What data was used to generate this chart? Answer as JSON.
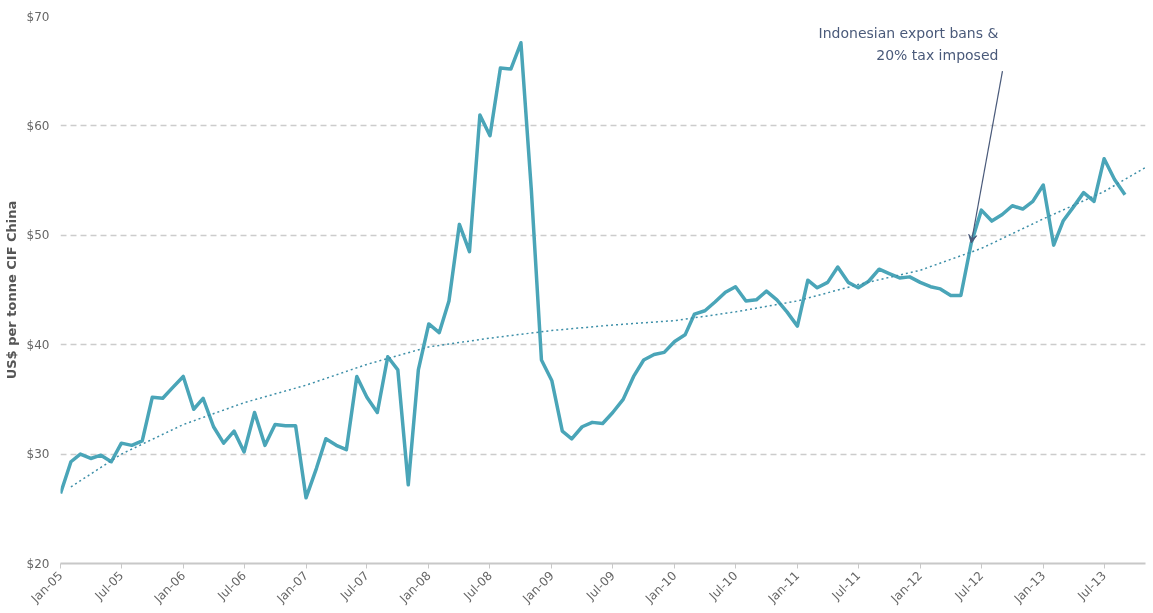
{
  "chart_data": {
    "type": "line",
    "ylabel": "US$ per tonne CIF China",
    "x": [
      "2005-01",
      "2005-02",
      "2005-03",
      "2005-04",
      "2005-05",
      "2005-06",
      "2005-07",
      "2005-08",
      "2005-09",
      "2005-10",
      "2005-11",
      "2005-12",
      "2006-01",
      "2006-02",
      "2006-03",
      "2006-04",
      "2006-05",
      "2006-06",
      "2006-07",
      "2006-08",
      "2006-09",
      "2006-10",
      "2006-11",
      "2006-12",
      "2007-01",
      "2007-02",
      "2007-03",
      "2007-04",
      "2007-05",
      "2007-06",
      "2007-07",
      "2007-08",
      "2007-09",
      "2007-10",
      "2007-11",
      "2007-12",
      "2008-01",
      "2008-02",
      "2008-03",
      "2008-04",
      "2008-05",
      "2008-06",
      "2008-07",
      "2008-08",
      "2008-09",
      "2008-10",
      "2008-11",
      "2008-12",
      "2009-01",
      "2009-02",
      "2009-03",
      "2009-04",
      "2009-05",
      "2009-06",
      "2009-07",
      "2009-08",
      "2009-09",
      "2009-10",
      "2009-11",
      "2009-12",
      "2010-01",
      "2010-02",
      "2010-03",
      "2010-04",
      "2010-05",
      "2010-06",
      "2010-07",
      "2010-08",
      "2010-09",
      "2010-10",
      "2010-11",
      "2010-12",
      "2011-01",
      "2011-02",
      "2011-03",
      "2011-04",
      "2011-05",
      "2011-06",
      "2011-07",
      "2011-08",
      "2011-09",
      "2011-10",
      "2011-11",
      "2011-12",
      "2012-01",
      "2012-02",
      "2012-03",
      "2012-04",
      "2012-05",
      "2012-06",
      "2012-07",
      "2012-08",
      "2012-09",
      "2012-10",
      "2012-11",
      "2012-12",
      "2013-01",
      "2013-02",
      "2013-03",
      "2013-04",
      "2013-05",
      "2013-06",
      "2013-07",
      "2013-08",
      "2013-09"
    ],
    "series": [
      {
        "color": "#4aa5b8",
        "line_style": "solid",
        "values": [
          26.4,
          29.3,
          30.0,
          29.6,
          29.9,
          29.3,
          31.0,
          30.8,
          31.2,
          35.2,
          35.1,
          36.1,
          37.1,
          34.1,
          35.1,
          32.5,
          31.0,
          32.1,
          30.2,
          33.8,
          30.8,
          32.7,
          32.6,
          32.6,
          26.0,
          28.7,
          31.4,
          30.8,
          30.4,
          37.1,
          35.2,
          33.8,
          38.9,
          37.7,
          27.2,
          37.7,
          41.9,
          41.1,
          44.0,
          51.0,
          48.5,
          61.0,
          59.1,
          65.3,
          65.2,
          67.6,
          54.1,
          38.6,
          36.7,
          32.1,
          31.4,
          32.5,
          32.9,
          32.8,
          33.8,
          35.0,
          37.1,
          38.6,
          39.1,
          39.3,
          40.3,
          40.9,
          42.8,
          43.1,
          43.9,
          44.8,
          45.3,
          44.0,
          44.1,
          44.9,
          44.1,
          43.0,
          41.7,
          45.9,
          45.2,
          45.7,
          47.1,
          45.7,
          45.2,
          45.8,
          46.9,
          46.5,
          46.1,
          46.2,
          45.7,
          45.3,
          45.1,
          44.5,
          44.5,
          49.3,
          52.3,
          51.3,
          51.9,
          52.7,
          52.4,
          53.1,
          54.6,
          49.1,
          51.3,
          52.6,
          53.9,
          53.1,
          57.0,
          55.1,
          53.7
        ]
      },
      {
        "type": "line",
        "color": "#3d8fa8",
        "line_style": "dotted",
        "x": [
          "2005-02",
          "2005-07",
          "2006-01",
          "2006-07",
          "2007-01",
          "2007-07",
          "2008-01",
          "2008-07",
          "2009-01",
          "2009-07",
          "2010-01",
          "2010-07",
          "2011-01",
          "2011-07",
          "2012-01",
          "2012-07",
          "2013-01",
          "2013-07",
          "2013-11"
        ],
        "values": [
          27.0,
          30.0,
          32.7,
          34.7,
          36.3,
          38.2,
          39.8,
          40.6,
          41.3,
          41.8,
          42.2,
          43.0,
          44.0,
          45.5,
          46.8,
          48.8,
          51.5,
          54.0,
          56.2
        ]
      }
    ],
    "xlim": [
      "2005-01",
      "2013-11"
    ],
    "xticks": [
      {
        "value": "2005-01",
        "label": "Jan-05"
      },
      {
        "value": "2005-07",
        "label": "Jul-05"
      },
      {
        "value": "2006-01",
        "label": "Jan-06"
      },
      {
        "value": "2006-07",
        "label": "Jul-06"
      },
      {
        "value": "2007-01",
        "label": "Jan-07"
      },
      {
        "value": "2007-07",
        "label": "Jul-07"
      },
      {
        "value": "2008-01",
        "label": "Jan-08"
      },
      {
        "value": "2008-07",
        "label": "Jul-08"
      },
      {
        "value": "2009-01",
        "label": "Jan-09"
      },
      {
        "value": "2009-07",
        "label": "Jul-09"
      },
      {
        "value": "2010-01",
        "label": "Jan-10"
      },
      {
        "value": "2010-07",
        "label": "Jul-10"
      },
      {
        "value": "2011-01",
        "label": "Jan-11"
      },
      {
        "value": "2011-07",
        "label": "Jul-11"
      },
      {
        "value": "2012-01",
        "label": "Jan-12"
      },
      {
        "value": "2012-07",
        "label": "Jul-12"
      },
      {
        "value": "2013-01",
        "label": "Jan-13"
      },
      {
        "value": "2013-07",
        "label": "Jul-13"
      }
    ],
    "ylim": [
      20,
      70
    ],
    "yticks": [
      {
        "value": 20,
        "label": "$20"
      },
      {
        "value": 30,
        "label": "$30"
      },
      {
        "value": 40,
        "label": "$40"
      },
      {
        "value": 50,
        "label": "$50"
      },
      {
        "value": 60,
        "label": "$60"
      },
      {
        "value": 70,
        "label": "$70"
      }
    ],
    "grid": "y",
    "annotations": [
      {
        "text": "Indonesian export bans &\n20% tax imposed",
        "x": "2012-06",
        "y": 49.3
      }
    ]
  }
}
